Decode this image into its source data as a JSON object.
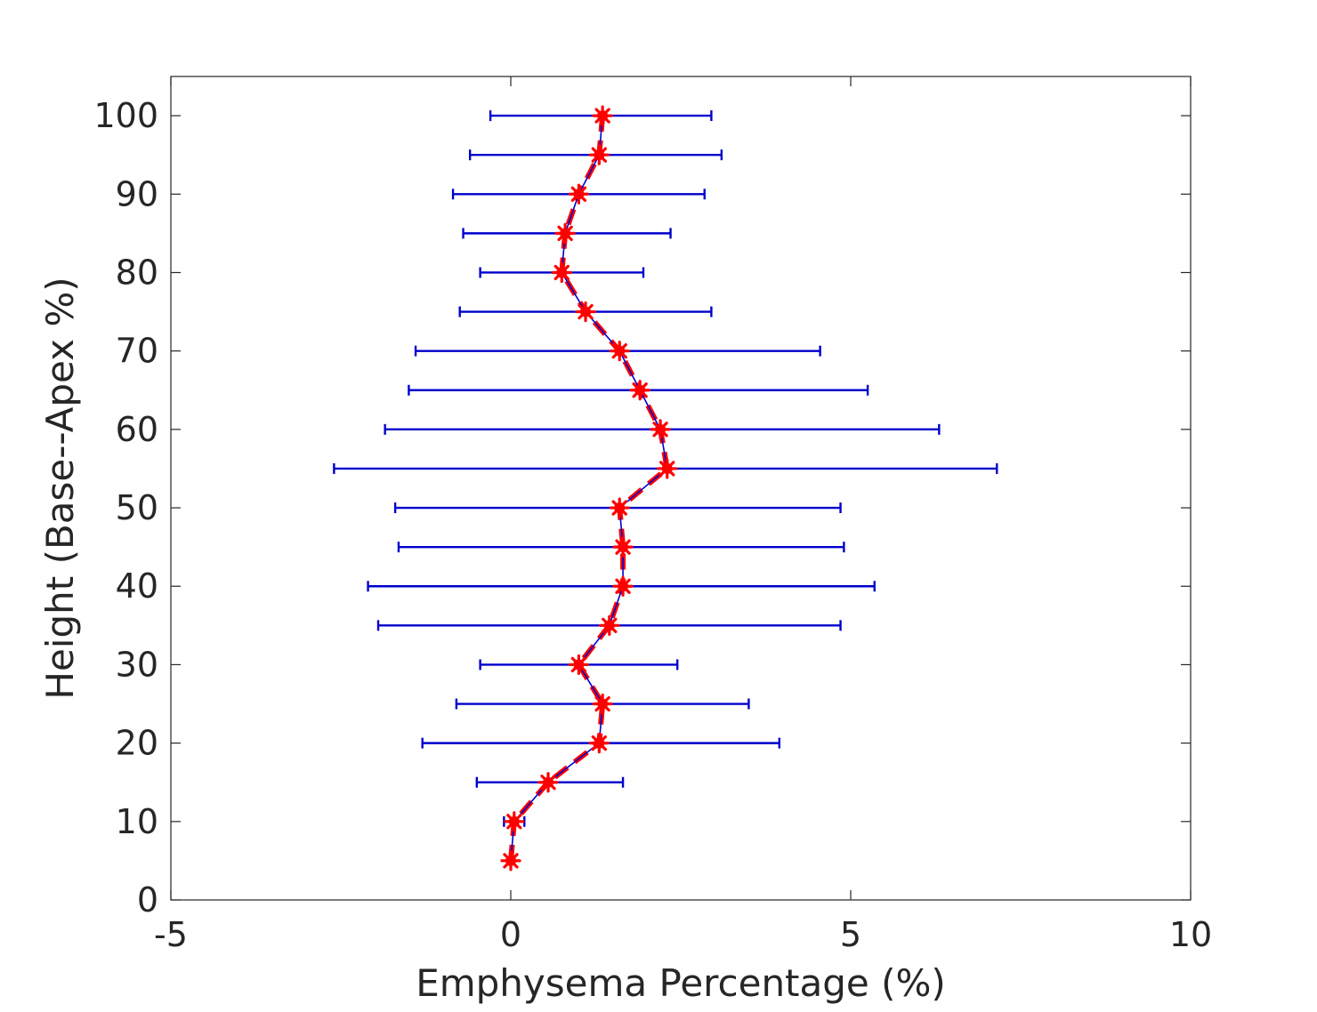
{
  "chart_data": {
    "type": "line",
    "title": "",
    "xlabel": "Emphysema Percentage (%)",
    "ylabel": "Height (Base--Apex %)",
    "xlim": [
      -5,
      10
    ],
    "ylim": [
      0,
      105
    ],
    "xticks": [
      -5,
      0,
      5,
      10
    ],
    "xtick_labels": [
      "-5",
      "0",
      "5",
      "10"
    ],
    "yticks": [
      0,
      10,
      20,
      30,
      40,
      50,
      60,
      70,
      80,
      90,
      100
    ],
    "ytick_labels": [
      "0",
      "10",
      "20",
      "30",
      "40",
      "50",
      "60",
      "70",
      "80",
      "90",
      "100"
    ],
    "grid": false,
    "box": true,
    "colors": {
      "errorbar": "#0000CD",
      "marker": "#FF0000",
      "axis": "#262626"
    },
    "series": [
      {
        "orientation": "horizontal-errorbar",
        "marker": "star",
        "points": [
          {
            "y": 5,
            "x": 0.0,
            "xmin": 0.0,
            "xmax": 0.0
          },
          {
            "y": 10,
            "x": 0.05,
            "xmin": -0.1,
            "xmax": 0.2
          },
          {
            "y": 15,
            "x": 0.55,
            "xmin": -0.5,
            "xmax": 1.65
          },
          {
            "y": 20,
            "x": 1.3,
            "xmin": -1.3,
            "xmax": 3.95
          },
          {
            "y": 25,
            "x": 1.35,
            "xmin": -0.8,
            "xmax": 3.5
          },
          {
            "y": 30,
            "x": 1.0,
            "xmin": -0.45,
            "xmax": 2.45
          },
          {
            "y": 35,
            "x": 1.45,
            "xmin": -1.95,
            "xmax": 4.85
          },
          {
            "y": 40,
            "x": 1.65,
            "xmin": -2.1,
            "xmax": 5.35
          },
          {
            "y": 45,
            "x": 1.65,
            "xmin": -1.65,
            "xmax": 4.9
          },
          {
            "y": 50,
            "x": 1.6,
            "xmin": -1.7,
            "xmax": 4.85
          },
          {
            "y": 55,
            "x": 2.3,
            "xmin": -2.6,
            "xmax": 7.15
          },
          {
            "y": 60,
            "x": 2.2,
            "xmin": -1.85,
            "xmax": 6.3
          },
          {
            "y": 65,
            "x": 1.9,
            "xmin": -1.5,
            "xmax": 5.25
          },
          {
            "y": 70,
            "x": 1.6,
            "xmin": -1.4,
            "xmax": 4.55
          },
          {
            "y": 75,
            "x": 1.1,
            "xmin": -0.75,
            "xmax": 2.95
          },
          {
            "y": 80,
            "x": 0.75,
            "xmin": -0.45,
            "xmax": 1.95
          },
          {
            "y": 85,
            "x": 0.8,
            "xmin": -0.7,
            "xmax": 2.35
          },
          {
            "y": 90,
            "x": 1.0,
            "xmin": -0.85,
            "xmax": 2.85
          },
          {
            "y": 95,
            "x": 1.3,
            "xmin": -0.6,
            "xmax": 3.1
          },
          {
            "y": 100,
            "x": 1.35,
            "xmin": -0.3,
            "xmax": 2.95
          }
        ]
      }
    ]
  }
}
